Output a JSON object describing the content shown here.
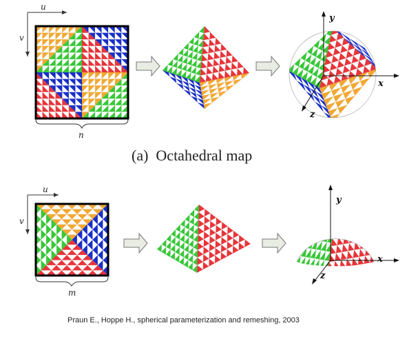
{
  "colors": {
    "red": "#e8353a",
    "blue": "#1830c8",
    "green": "#38c838",
    "orange": "#f2a832",
    "white": "#ffffff",
    "arrow_fill": "#e8ece2",
    "arrow_stroke": "#777777"
  },
  "top": {
    "u_label": "u",
    "v_label": "v",
    "n_label": "n",
    "caption_tag": "(a)",
    "caption_text": "Octahedral map",
    "axis_x": "x",
    "axis_y": "y",
    "axis_z": "z"
  },
  "bottom": {
    "u_label": "u",
    "v_label": "v",
    "m_label": "m",
    "axis_x": "x",
    "axis_y": "y",
    "axis_z": "z"
  },
  "citation": "Praun E., Hoppe H., spherical parameterization and remeshing, 2003"
}
